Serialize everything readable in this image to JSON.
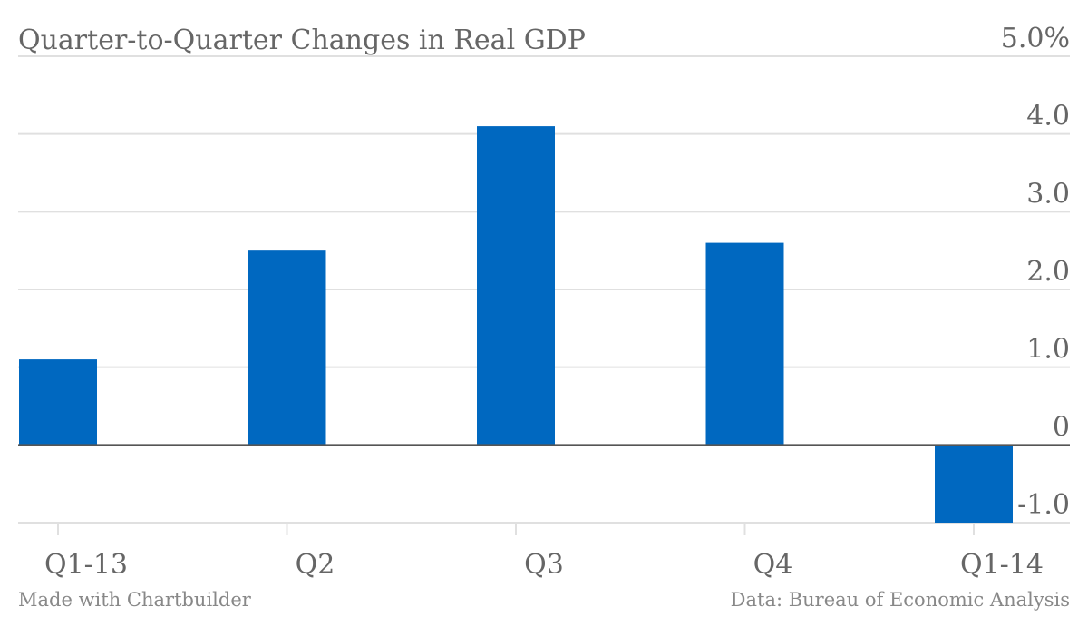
{
  "colors": {
    "bar": "#0068c0",
    "grid": "#e0e0e0",
    "zero_line": "#555555",
    "text": "#666666",
    "footer_text": "#888888"
  },
  "footer": {
    "credit": "Made with Chartbuilder",
    "source": "Data: Bureau of Economic Analysis"
  },
  "chart_data": {
    "type": "bar",
    "title": "Quarter-to-Quarter Changes in Real GDP",
    "xlabel": "",
    "ylabel": "",
    "categories": [
      "Q1-13",
      "Q2",
      "Q3",
      "Q4",
      "Q1-14"
    ],
    "values": [
      1.1,
      2.5,
      4.1,
      2.6,
      -1.0
    ],
    "ylim": [
      -1.0,
      5.0
    ],
    "yticks": [
      -1.0,
      0,
      1.0,
      2.0,
      3.0,
      4.0,
      5.0
    ],
    "ytick_labels": [
      "-1.0",
      "0",
      "1.0",
      "2.0",
      "3.0",
      "4.0",
      "5.0%"
    ],
    "grid": true,
    "axis_position": "right",
    "legend": "none"
  }
}
